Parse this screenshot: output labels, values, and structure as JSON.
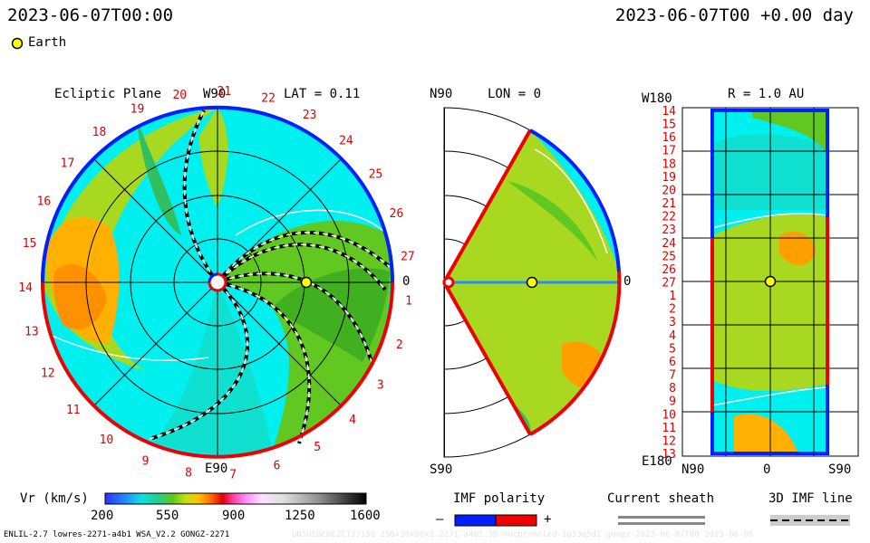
{
  "header": {
    "left_time": "2023-06-07T00:00",
    "right_time": "2023-06-07T00 +0.00 day"
  },
  "legend": {
    "earth_label": "Earth"
  },
  "ecliptic": {
    "title": "Ecliptic Plane",
    "top_label": "W90",
    "bottom_label": "E90",
    "right_label": "0",
    "lat_label": "LAT = 0.11",
    "sector_numbers": [
      "1",
      "2",
      "3",
      "4",
      "5",
      "6",
      "7",
      "8",
      "9",
      "10",
      "11",
      "12",
      "13",
      "14",
      "15",
      "16",
      "17",
      "18",
      "19",
      "20",
      "21",
      "22",
      "23",
      "24",
      "25",
      "26",
      "27"
    ]
  },
  "meridional": {
    "top_label": "N90",
    "bottom_label": "S90",
    "lon_label": "LON = 0",
    "right_label": "0"
  },
  "sphere": {
    "title": "R = 1.0 AU",
    "top_left": "W180",
    "bottom_left": "E180",
    "bottom_labels": [
      "N90",
      "0",
      "S90"
    ],
    "rows": [
      "14",
      "15",
      "16",
      "17",
      "18",
      "19",
      "20",
      "21",
      "22",
      "23",
      "24",
      "25",
      "26",
      "27",
      "1",
      "2",
      "3",
      "4",
      "5",
      "6",
      "7",
      "8",
      "9",
      "10",
      "11",
      "12",
      "13"
    ]
  },
  "colorbar": {
    "label": "Vr (km/s)",
    "ticks": [
      "200",
      "550",
      "900",
      "1250",
      "1600"
    ]
  },
  "imf": {
    "label": "IMF polarity",
    "minus": "–",
    "plus": "+"
  },
  "sheath": {
    "label": "Current sheath"
  },
  "imfline": {
    "label": "3D IMF line"
  },
  "footer": {
    "model": "ENLIL-2.7 lowres-2271-a4b1 WSA_V2.2 GONGZ-2271",
    "run": "UNSUEDEDE2C1JJ156 256x30x90x1.2271-a4b1.35-nocptsmnled-1g53q5d2.gongz-2023-06-07T00   2023-06-06"
  },
  "chart_data": {
    "type": "heatmap",
    "quantity": "Vr (km/s)",
    "color_range": [
      200,
      1600
    ],
    "color_ticks": [
      200,
      550,
      900,
      1250,
      1600
    ],
    "earth": {
      "ecliptic_r_au": 1.0,
      "lon_deg": 0,
      "lat_deg": 0.11
    },
    "panels": [
      "Ecliptic Plane",
      "LON = 0",
      "R = 1.0 AU"
    ]
  }
}
